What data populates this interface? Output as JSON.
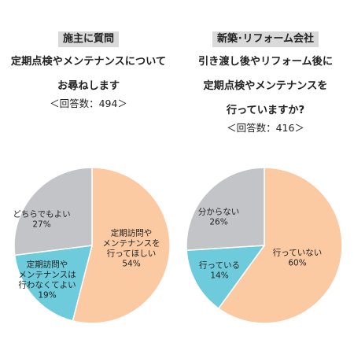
{
  "chart_data": [
    {
      "type": "pie",
      "tag": "施主に質問",
      "title_lines": [
        "定期点検やメンテナンスについて",
        "お尋ねします"
      ],
      "respondents": "＜回答数：494＞",
      "slices": [
        {
          "label": "定期訪問や\nメンテナンスを\n行ってほしい",
          "pct_text": "54%",
          "value": 54,
          "color": "#fbc9a2"
        },
        {
          "label": "定期訪問や\nメンテナンスは\n行わなくてよい",
          "pct_text": "19%",
          "value": 19,
          "color": "#6dcbdc"
        },
        {
          "label": "どちらでもよい",
          "pct_text": "27%",
          "value": 27,
          "color": "#c3c4c8"
        }
      ]
    },
    {
      "type": "pie",
      "tag": "新築･リフォーム会社",
      "title_lines": [
        "引き渡し後やリフォーム後に",
        "定期点検やメンテナンスを",
        "行っていますか?"
      ],
      "respondents": "＜回答数：416＞",
      "slices": [
        {
          "label": "行っていない",
          "pct_text": "60%",
          "value": 60,
          "color": "#fbc9a2"
        },
        {
          "label": "行っている",
          "pct_text": "14%",
          "value": 14,
          "color": "#6dcbdc"
        },
        {
          "label": "分からない",
          "pct_text": "26%",
          "value": 26,
          "color": "#c3c4c8"
        }
      ]
    }
  ]
}
